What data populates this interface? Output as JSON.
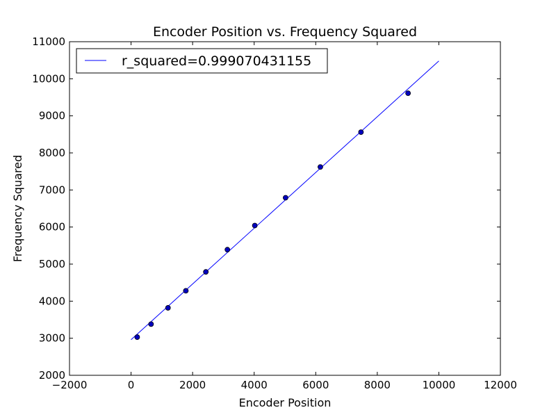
{
  "chart_data": {
    "type": "scatter",
    "title": "Encoder Position vs. Frequency Squared",
    "xlabel": "Encoder Position",
    "ylabel": "Frequency Squared",
    "xlim": [
      -2000,
      12000
    ],
    "ylim": [
      2000,
      11000
    ],
    "xticks": [
      -2000,
      0,
      2000,
      4000,
      6000,
      8000,
      10000,
      12000
    ],
    "yticks": [
      2000,
      3000,
      4000,
      5000,
      6000,
      7000,
      8000,
      9000,
      10000,
      11000
    ],
    "grid": false,
    "legend_position": "upper-left",
    "legend": [
      "r_squared=0.999070431155"
    ],
    "series": [
      {
        "kind": "scatter",
        "color": "#0000bf",
        "points": [
          {
            "x": 200,
            "y": 3030
          },
          {
            "x": 650,
            "y": 3380
          },
          {
            "x": 1200,
            "y": 3820
          },
          {
            "x": 1780,
            "y": 4280
          },
          {
            "x": 2430,
            "y": 4790
          },
          {
            "x": 3130,
            "y": 5390
          },
          {
            "x": 4020,
            "y": 6040
          },
          {
            "x": 5020,
            "y": 6790
          },
          {
            "x": 6150,
            "y": 7620
          },
          {
            "x": 7470,
            "y": 8560
          },
          {
            "x": 9000,
            "y": 9610
          }
        ]
      },
      {
        "kind": "line",
        "name": "r_squared=0.999070431155",
        "color": "#0000ff",
        "points": [
          {
            "x": 0,
            "y": 2960
          },
          {
            "x": 10000,
            "y": 10480
          }
        ]
      }
    ]
  }
}
